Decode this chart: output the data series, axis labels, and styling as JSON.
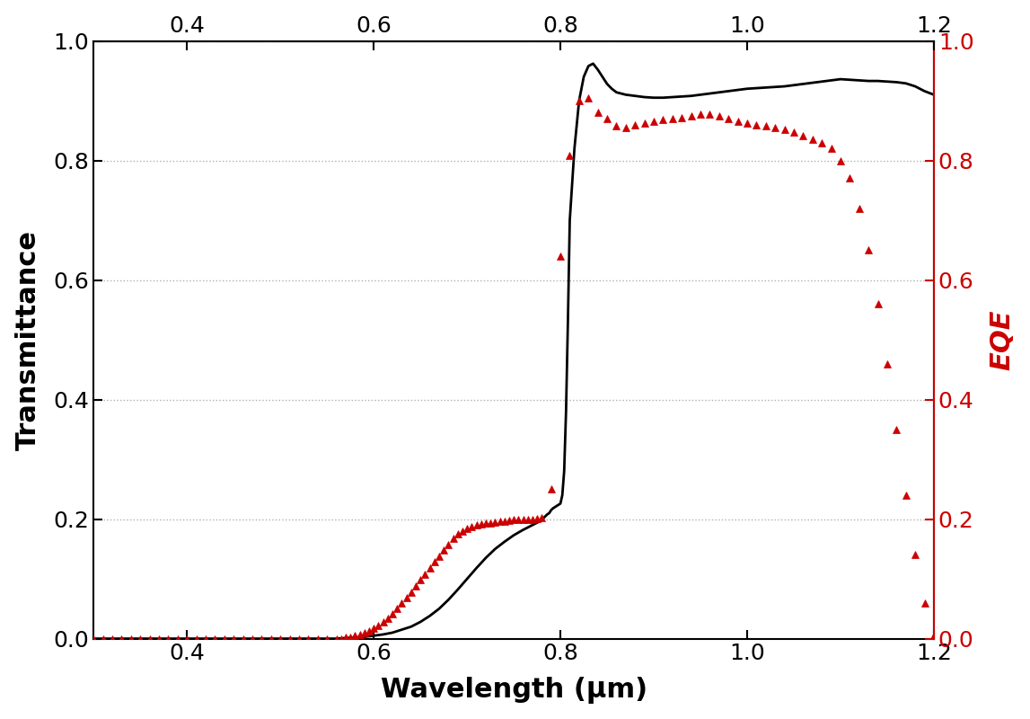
{
  "xlabel": "Wavelength (μm)",
  "ylabel_left": "Transmittance",
  "ylabel_right": "EQE",
  "xlim": [
    0.3,
    1.2
  ],
  "ylim": [
    0.0,
    1.0
  ],
  "xticks": [
    0.4,
    0.6,
    0.8,
    1.0,
    1.2
  ],
  "yticks": [
    0.0,
    0.2,
    0.4,
    0.6,
    0.8,
    1.0
  ],
  "background_color": "#ffffff",
  "grid_color": "#b0b0b0",
  "transmittance_color": "#000000",
  "eqe_color": "#cc0000",
  "transmittance_x": [
    0.3,
    0.31,
    0.32,
    0.33,
    0.34,
    0.35,
    0.36,
    0.37,
    0.38,
    0.39,
    0.4,
    0.41,
    0.42,
    0.43,
    0.44,
    0.45,
    0.46,
    0.47,
    0.48,
    0.49,
    0.5,
    0.51,
    0.52,
    0.53,
    0.54,
    0.55,
    0.56,
    0.57,
    0.58,
    0.59,
    0.6,
    0.61,
    0.62,
    0.63,
    0.64,
    0.65,
    0.66,
    0.67,
    0.68,
    0.69,
    0.7,
    0.71,
    0.72,
    0.73,
    0.74,
    0.75,
    0.76,
    0.77,
    0.78,
    0.782,
    0.784,
    0.786,
    0.788,
    0.79,
    0.792,
    0.794,
    0.796,
    0.798,
    0.8,
    0.802,
    0.804,
    0.806,
    0.808,
    0.81,
    0.815,
    0.82,
    0.825,
    0.83,
    0.835,
    0.84,
    0.845,
    0.85,
    0.855,
    0.86,
    0.87,
    0.88,
    0.89,
    0.9,
    0.91,
    0.92,
    0.93,
    0.94,
    0.95,
    0.96,
    0.97,
    0.98,
    0.99,
    1.0,
    1.01,
    1.02,
    1.03,
    1.04,
    1.05,
    1.06,
    1.07,
    1.08,
    1.09,
    1.1,
    1.11,
    1.12,
    1.13,
    1.14,
    1.15,
    1.16,
    1.17,
    1.18,
    1.19,
    1.2
  ],
  "transmittance_y": [
    0.0,
    0.0,
    0.0,
    0.0,
    0.0,
    0.0,
    0.0,
    0.0,
    0.0,
    0.0,
    0.0,
    0.0,
    0.0,
    0.0,
    0.0,
    0.0,
    0.0,
    0.0,
    0.0,
    0.0,
    0.0,
    0.0,
    0.0,
    0.0,
    0.0,
    0.0,
    0.0,
    0.001,
    0.002,
    0.003,
    0.005,
    0.007,
    0.01,
    0.015,
    0.02,
    0.028,
    0.038,
    0.05,
    0.065,
    0.082,
    0.1,
    0.118,
    0.135,
    0.15,
    0.162,
    0.173,
    0.182,
    0.19,
    0.198,
    0.202,
    0.205,
    0.208,
    0.21,
    0.215,
    0.218,
    0.22,
    0.222,
    0.224,
    0.226,
    0.24,
    0.28,
    0.38,
    0.53,
    0.7,
    0.82,
    0.9,
    0.94,
    0.958,
    0.962,
    0.952,
    0.94,
    0.928,
    0.92,
    0.914,
    0.91,
    0.908,
    0.906,
    0.905,
    0.905,
    0.906,
    0.907,
    0.908,
    0.91,
    0.912,
    0.914,
    0.916,
    0.918,
    0.92,
    0.921,
    0.922,
    0.923,
    0.924,
    0.926,
    0.928,
    0.93,
    0.932,
    0.934,
    0.936,
    0.935,
    0.934,
    0.933,
    0.933,
    0.932,
    0.931,
    0.929,
    0.924,
    0.916,
    0.91
  ],
  "eqe_x": [
    0.3,
    0.31,
    0.32,
    0.33,
    0.34,
    0.35,
    0.36,
    0.37,
    0.38,
    0.39,
    0.4,
    0.41,
    0.42,
    0.43,
    0.44,
    0.45,
    0.46,
    0.47,
    0.48,
    0.49,
    0.5,
    0.51,
    0.52,
    0.53,
    0.54,
    0.55,
    0.56,
    0.565,
    0.57,
    0.575,
    0.58,
    0.585,
    0.59,
    0.595,
    0.6,
    0.605,
    0.61,
    0.615,
    0.62,
    0.625,
    0.63,
    0.635,
    0.64,
    0.645,
    0.65,
    0.655,
    0.66,
    0.665,
    0.67,
    0.675,
    0.68,
    0.685,
    0.69,
    0.695,
    0.7,
    0.705,
    0.71,
    0.715,
    0.72,
    0.725,
    0.73,
    0.735,
    0.74,
    0.745,
    0.75,
    0.755,
    0.76,
    0.765,
    0.77,
    0.775,
    0.78,
    0.79,
    0.8,
    0.81,
    0.82,
    0.83,
    0.84,
    0.85,
    0.86,
    0.87,
    0.88,
    0.89,
    0.9,
    0.91,
    0.92,
    0.93,
    0.94,
    0.95,
    0.96,
    0.97,
    0.98,
    0.99,
    1.0,
    1.01,
    1.02,
    1.03,
    1.04,
    1.05,
    1.06,
    1.07,
    1.08,
    1.09,
    1.1,
    1.11,
    1.12,
    1.13,
    1.14,
    1.15,
    1.16,
    1.17,
    1.18,
    1.19,
    1.2
  ],
  "eqe_y": [
    0.0,
    0.0,
    0.0,
    0.0,
    0.0,
    0.0,
    0.0,
    0.0,
    0.0,
    0.0,
    0.0,
    0.0,
    0.0,
    0.0,
    0.0,
    0.0,
    0.0,
    0.0,
    0.0,
    0.0,
    0.0,
    0.0,
    0.0,
    0.0,
    0.0,
    0.0,
    0.0,
    0.0,
    0.002,
    0.003,
    0.005,
    0.007,
    0.01,
    0.013,
    0.017,
    0.022,
    0.028,
    0.034,
    0.042,
    0.05,
    0.059,
    0.068,
    0.078,
    0.088,
    0.098,
    0.108,
    0.118,
    0.128,
    0.138,
    0.148,
    0.158,
    0.168,
    0.175,
    0.18,
    0.185,
    0.188,
    0.19,
    0.192,
    0.193,
    0.194,
    0.195,
    0.196,
    0.197,
    0.198,
    0.199,
    0.2,
    0.2,
    0.2,
    0.2,
    0.201,
    0.202,
    0.25,
    0.64,
    0.808,
    0.9,
    0.905,
    0.88,
    0.87,
    0.858,
    0.855,
    0.86,
    0.862,
    0.865,
    0.868,
    0.87,
    0.872,
    0.875,
    0.878,
    0.878,
    0.875,
    0.87,
    0.865,
    0.862,
    0.86,
    0.858,
    0.855,
    0.852,
    0.848,
    0.842,
    0.836,
    0.83,
    0.82,
    0.8,
    0.77,
    0.72,
    0.65,
    0.56,
    0.46,
    0.35,
    0.24,
    0.14,
    0.06,
    0.005
  ]
}
